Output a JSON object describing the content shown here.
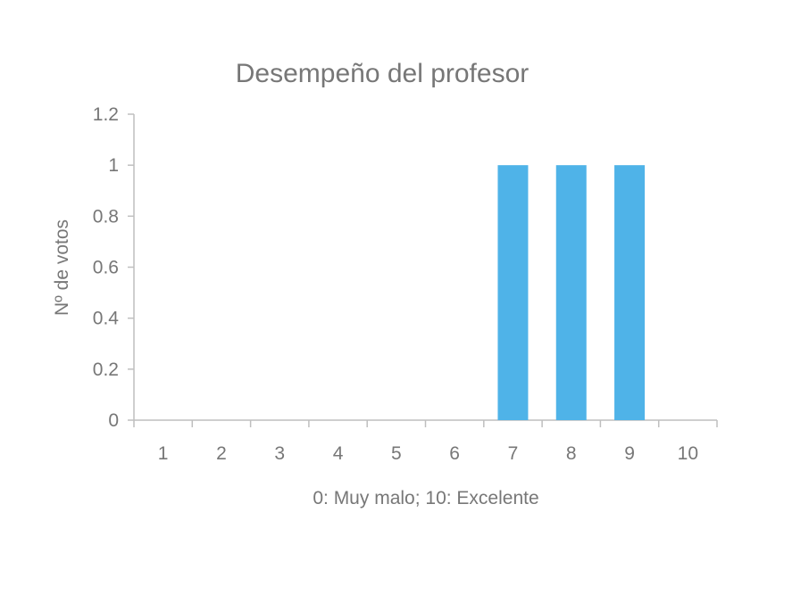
{
  "chart_data": {
    "type": "bar",
    "title": "Desempeño del profesor",
    "xlabel": "0: Muy malo; 10: Excelente",
    "ylabel": "Nº de votos",
    "categories": [
      "1",
      "2",
      "3",
      "4",
      "5",
      "6",
      "7",
      "8",
      "9",
      "10"
    ],
    "values": [
      0,
      0,
      0,
      0,
      0,
      0,
      1,
      1,
      1,
      0
    ],
    "ylim": [
      0,
      1.2
    ],
    "yticks": [
      "0",
      "0.2",
      "0.4",
      "0.6",
      "0.8",
      "1",
      "1.2"
    ],
    "grid": false,
    "legend": "none",
    "colors": {
      "bar": "#4FB3E8",
      "axis": "#BFBFBF",
      "text": "#777777"
    }
  }
}
